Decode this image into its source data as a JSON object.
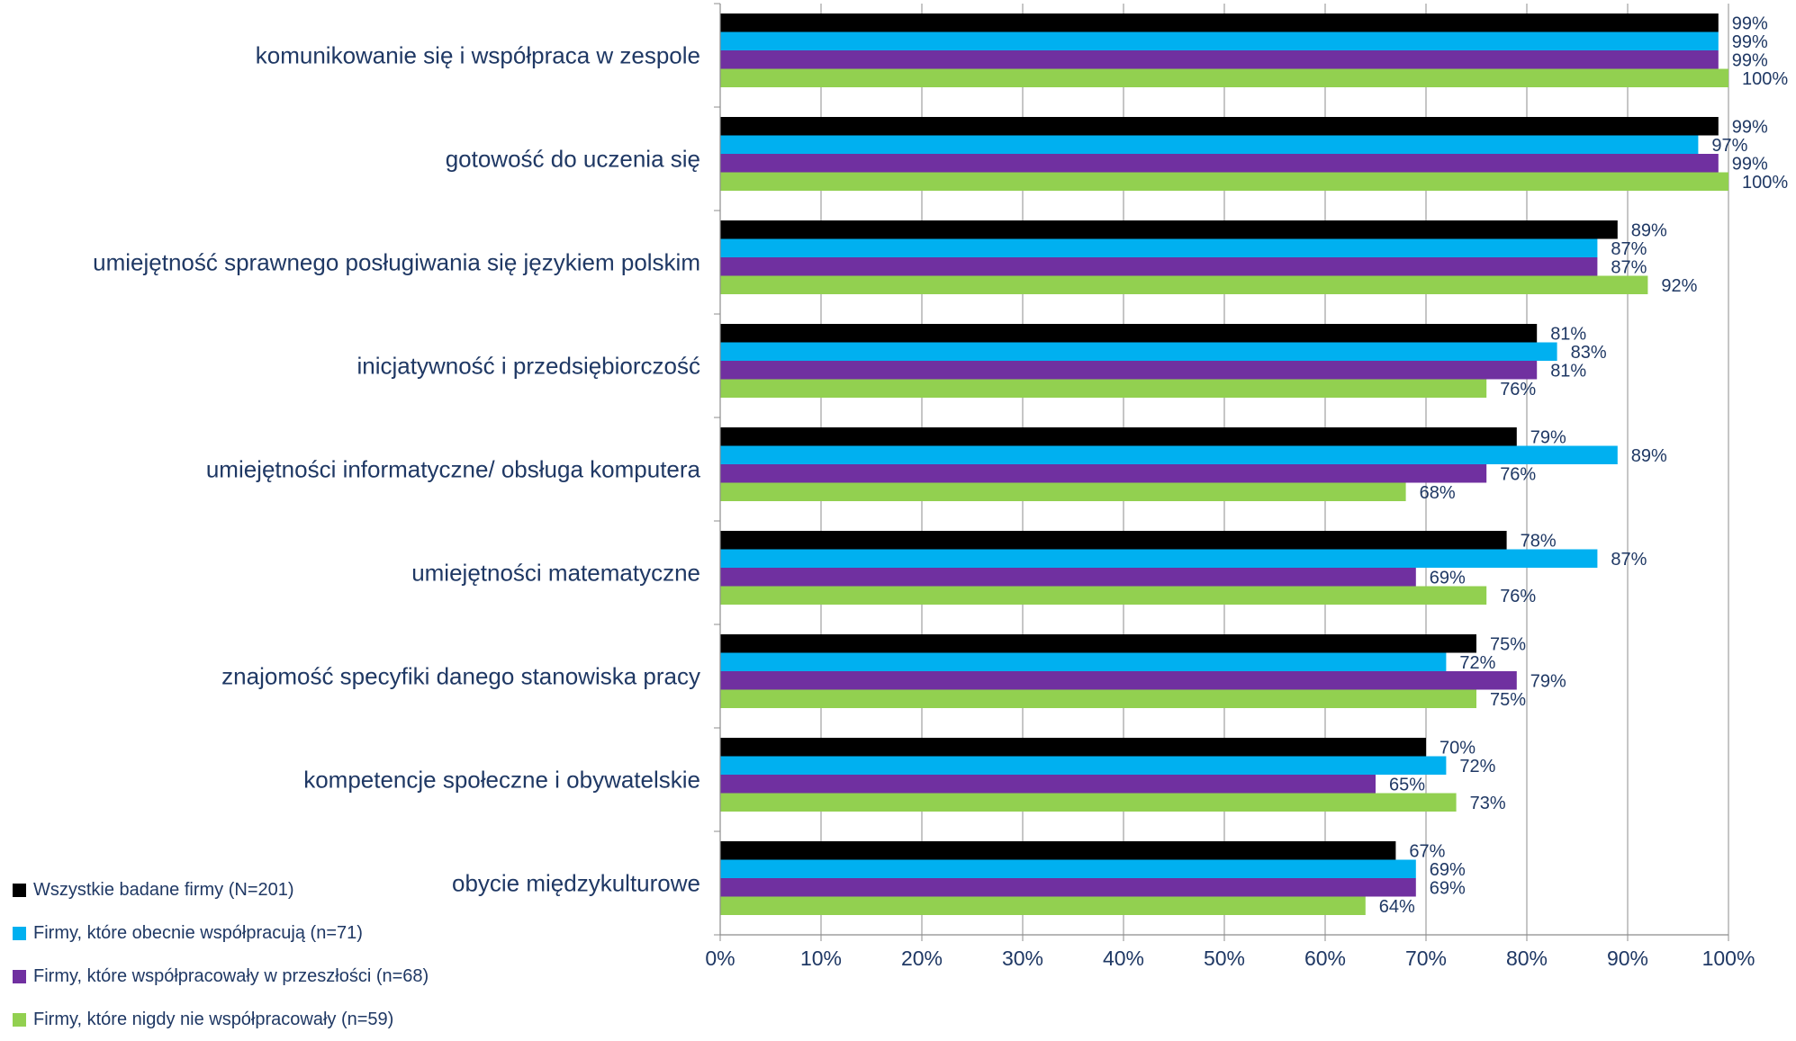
{
  "chart_data": {
    "type": "bar",
    "orientation": "horizontal",
    "categories": [
      "komunikowanie się i współpraca w zespole",
      "gotowość do uczenia się",
      "umiejętność sprawnego posługiwania się językiem polskim",
      "inicjatywność i przedsiębiorczość",
      "umiejętności informatyczne/ obsługa komputera",
      "umiejętności matematyczne",
      "znajomość specyfiki danego stanowiska pracy",
      "kompetencje społeczne i obywatelskie",
      "obycie międzykulturowe"
    ],
    "series": [
      {
        "name": "Wszystkie badane firmy (N=201)",
        "color": "#000000",
        "values": [
          99,
          99,
          89,
          81,
          79,
          78,
          75,
          70,
          67
        ]
      },
      {
        "name": "Firmy, które obecnie współpracują (n=71)",
        "color": "#00b0f0",
        "values": [
          99,
          97,
          87,
          83,
          89,
          87,
          72,
          72,
          69
        ]
      },
      {
        "name": "Firmy, które współpracowały w przeszłości (n=68)",
        "color": "#7030a0",
        "values": [
          99,
          99,
          87,
          81,
          76,
          69,
          79,
          65,
          69
        ]
      },
      {
        "name": "Firmy, które nigdy nie współpracowały (n=59)",
        "color": "#92d050",
        "values": [
          100,
          100,
          92,
          76,
          68,
          76,
          75,
          73,
          64
        ]
      }
    ],
    "x_ticks": [
      "0%",
      "10%",
      "20%",
      "30%",
      "40%",
      "50%",
      "60%",
      "70%",
      "80%",
      "90%",
      "100%"
    ],
    "xlim": [
      0,
      100
    ],
    "value_suffix": "%",
    "grid": true,
    "legend_position": "bottom-left"
  }
}
